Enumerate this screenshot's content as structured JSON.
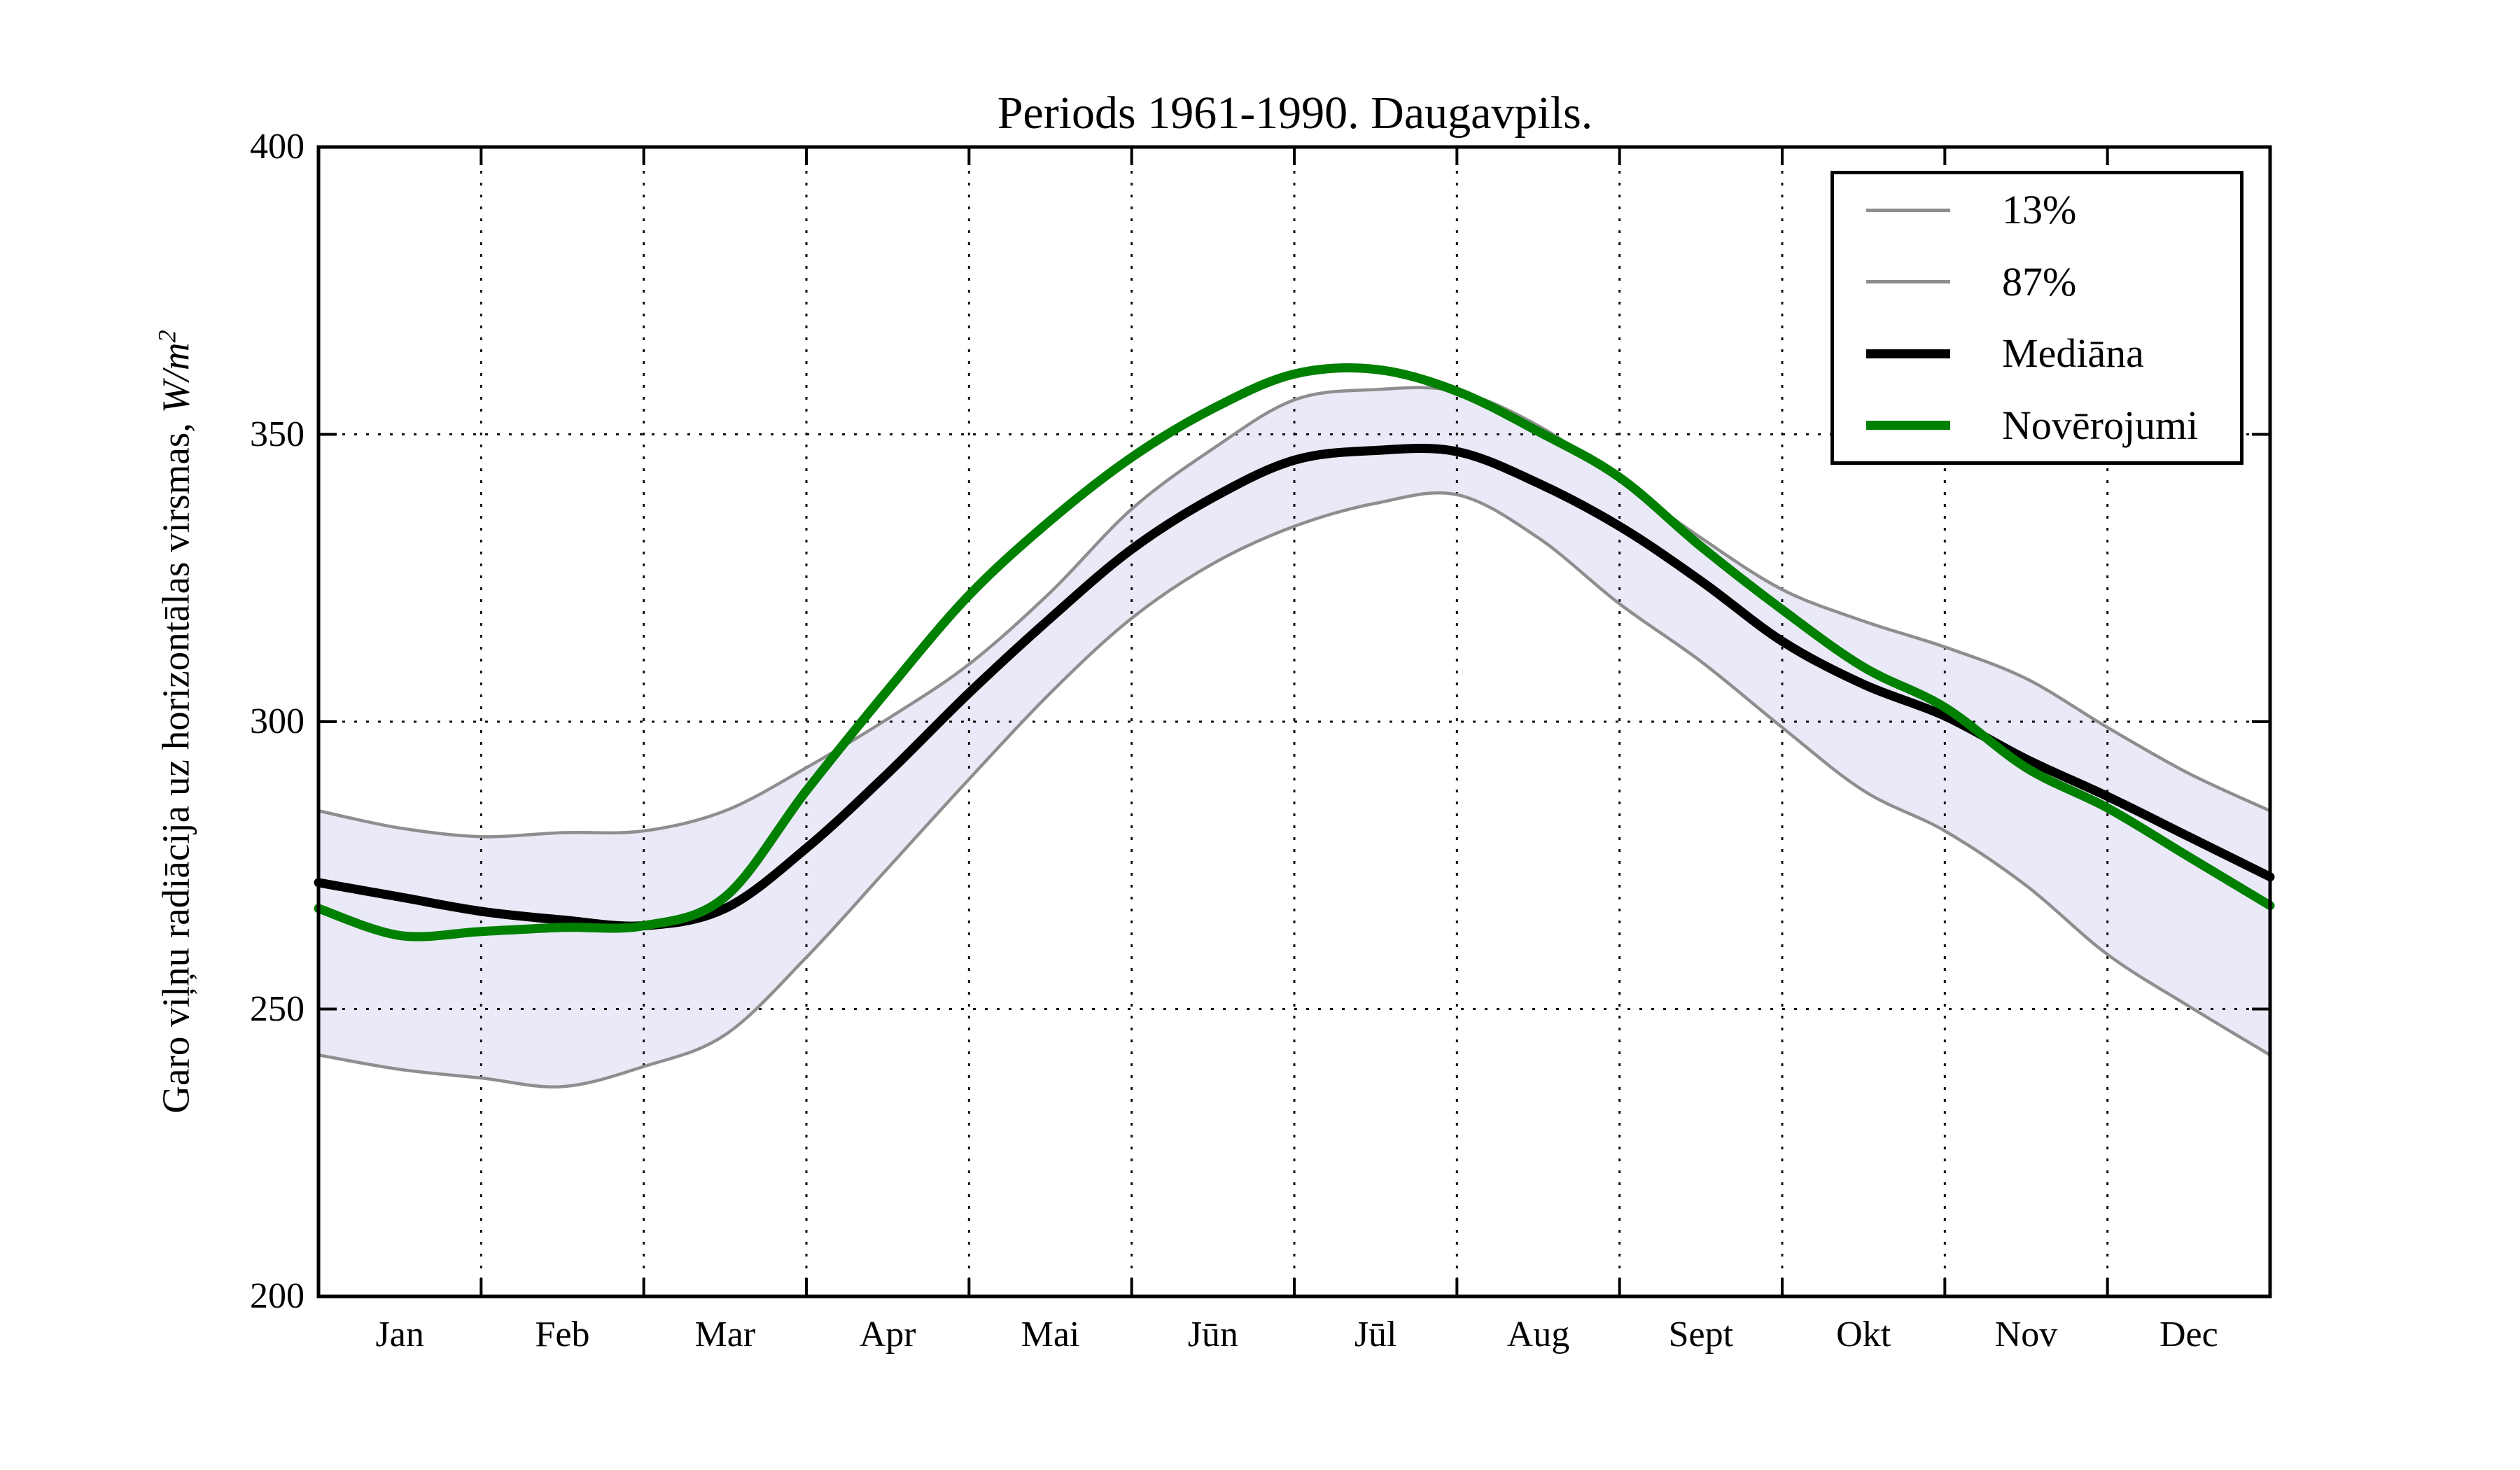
{
  "figure": {
    "title": "Periods 1961-1990. Daugavpils.",
    "background_color": "#ffffff"
  },
  "y_axis": {
    "label_prefix": "Garo viļņu radiācija uz horizontālas virsmas, ",
    "label_math": "W/m",
    "label_exponent": "2",
    "ticks": [
      400,
      350,
      300,
      250,
      200
    ],
    "gridlines": [
      350,
      300,
      250
    ]
  },
  "x_axis": {
    "months": [
      "Jan",
      "Feb",
      "Mar",
      "Apr",
      "Mai",
      "Jūn",
      "Jūl",
      "Aug",
      "Sept",
      "Okt",
      "Nov",
      "Dec"
    ],
    "gridline_month_boundaries": [
      1,
      2,
      3,
      4,
      5,
      6,
      7,
      8,
      9,
      10,
      11
    ]
  },
  "legend": {
    "position": "upper right",
    "items": [
      {
        "label": "13%",
        "color": "#8e8e8e",
        "thickness": 5
      },
      {
        "label": "87%",
        "color": "#8e8e8e",
        "thickness": 5
      },
      {
        "label": "Mediāna",
        "color": "#000000",
        "thickness": 13
      },
      {
        "label": "Novērojumi",
        "color": "#008000",
        "thickness": 13
      }
    ]
  },
  "chart_data": {
    "type": "line",
    "title": "Periods 1961-1990. Daugavpils.",
    "xlabel": "",
    "ylabel": "Garo viļņu radiācija uz horizontālas virsmas, W/m²",
    "ylim": [
      200,
      400
    ],
    "x_unit": "months_from_jan1",
    "x_range": [
      0,
      12
    ],
    "grid": "dotted",
    "x": [
      0,
      0.5,
      1,
      1.5,
      2,
      2.5,
      3,
      3.5,
      4,
      4.5,
      5,
      5.5,
      6,
      6.5,
      7,
      7.5,
      8,
      8.5,
      9,
      9.5,
      10,
      10.5,
      11,
      11.5,
      12
    ],
    "series": [
      {
        "name": "13%",
        "role": "percentile_lower",
        "color": "#8e8e8e",
        "line_width": 4.5,
        "values": [
          242,
          239.5,
          238,
          236.5,
          240,
          245.5,
          259,
          274.5,
          290,
          305,
          318,
          327.5,
          334,
          338,
          339.5,
          332,
          320.5,
          310.5,
          299,
          288,
          281,
          271.5,
          259.5,
          250.5,
          242
        ]
      },
      {
        "name": "87%",
        "role": "percentile_upper",
        "color": "#8e8e8e",
        "line_width": 4.5,
        "values": [
          284.5,
          281.5,
          280,
          280.7,
          281,
          284.5,
          292,
          300.5,
          310,
          322.5,
          337,
          347.5,
          356,
          357.8,
          357.5,
          351.5,
          342,
          332,
          323,
          317.5,
          313,
          307.5,
          299,
          291,
          284.5
        ]
      },
      {
        "name": "Mediāna",
        "role": "median",
        "color": "#000000",
        "line_width": 13,
        "values": [
          272,
          269.5,
          267,
          265.5,
          264.5,
          267.5,
          278,
          291,
          305,
          318,
          330,
          339,
          345.5,
          347.2,
          347,
          341.5,
          334,
          324.5,
          314,
          306.5,
          301,
          293.5,
          287,
          280,
          273
        ]
      },
      {
        "name": "Novērojumi",
        "role": "observations",
        "color": "#008000",
        "line_width": 13,
        "values": [
          267.5,
          262.8,
          263.5,
          264.2,
          264.5,
          269.5,
          288,
          305.5,
          322,
          335,
          346,
          354.5,
          360.5,
          361.3,
          357.5,
          350.5,
          342.5,
          330.5,
          319.5,
          309.5,
          302.5,
          292,
          285,
          276.5,
          268
        ]
      }
    ],
    "band": {
      "lower": "13%",
      "upper": "87%",
      "fill_color": "#e9e9f7"
    }
  }
}
